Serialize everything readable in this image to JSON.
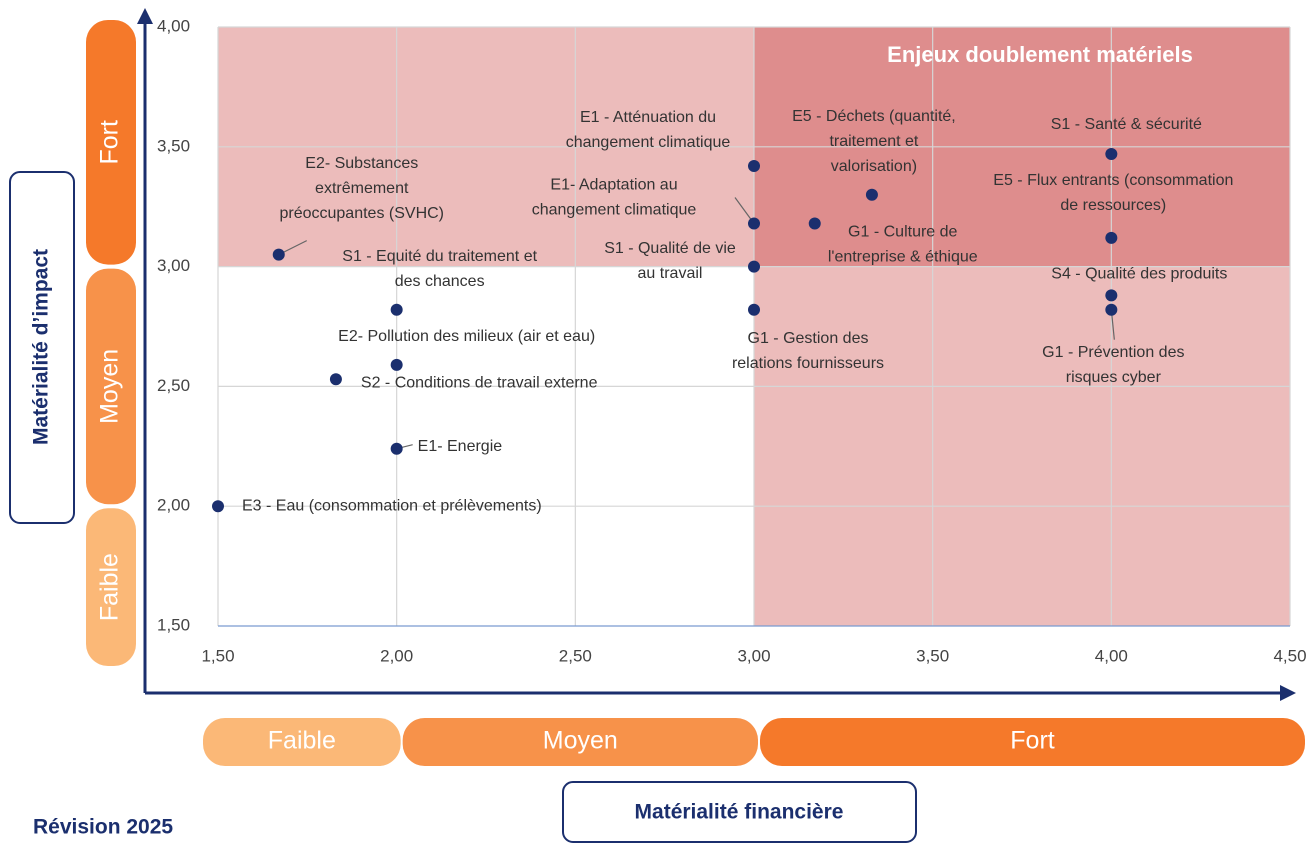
{
  "chart_data": {
    "type": "scatter",
    "highlight_label": "Enjeux doublement matériels",
    "thresholds": {
      "x": 3,
      "y": 3
    },
    "x": [
      1.67,
      2.0,
      2.0,
      1.83,
      2.0,
      1.5,
      3.0,
      3.0,
      3.0,
      3.0,
      3.17,
      3.33,
      4.0,
      4.0,
      4.0,
      4.0
    ],
    "y": [
      3.05,
      2.82,
      2.59,
      2.53,
      2.24,
      2.0,
      3.42,
      3.18,
      3.0,
      2.82,
      3.18,
      3.3,
      3.47,
      3.12,
      2.88,
      2.82
    ],
    "labels": [
      [
        "E2- Substances",
        "extrêmement",
        "préoccupantes (SVHC)"
      ],
      [
        "S1 - Equité du traitement et",
        "des chances"
      ],
      [
        "E2- Pollution des milieux (air et eau)"
      ],
      [
        "S2 - Conditions de travail externe"
      ],
      [
        "E1- Energie"
      ],
      [
        "E3 - Eau (consommation et prélèvements)"
      ],
      [
        "E1 - Atténuation du",
        "changement climatique"
      ],
      [
        "E1- Adaptation au",
        "changement climatique"
      ],
      [
        "S1 - Qualité de vie",
        "au travail"
      ],
      [
        "G1 - Gestion des",
        "relations fournisseurs"
      ],
      [
        "G1 - Culture de",
        "l'entreprise & éthique"
      ],
      [
        "E5 - Déchets (quantité,",
        "traitement et",
        "valorisation)"
      ],
      [
        "S1 - Santé & sécurité"
      ],
      [
        "E5 - Flux entrants (consommation",
        "de ressources)"
      ],
      [
        "S4 - Qualité des produits"
      ],
      [
        "G1 - Prévention des",
        "risques cyber"
      ]
    ],
    "color": "#1b2f6e",
    "xlim": [
      1.5,
      4.5
    ],
    "ylim": [
      1.5,
      4.0
    ],
    "xticks": [
      {
        "value": 1.5,
        "label": "1,50"
      },
      {
        "value": 2.0,
        "label": "2,00"
      },
      {
        "value": 2.5,
        "label": "2,50"
      },
      {
        "value": 3.0,
        "label": "3,00"
      },
      {
        "value": 3.5,
        "label": "3,50"
      },
      {
        "value": 4.0,
        "label": "4,00"
      },
      {
        "value": 4.5,
        "label": "4,50"
      }
    ],
    "yticks": [
      {
        "value": 1.5,
        "label": "1,50"
      },
      {
        "value": 2.0,
        "label": "2,00"
      },
      {
        "value": 2.5,
        "label": "2,50"
      },
      {
        "value": 3.0,
        "label": "3,00"
      },
      {
        "value": 3.5,
        "label": "3,50"
      },
      {
        "value": 4.0,
        "label": "4,00"
      }
    ],
    "grid": true,
    "xlabel": "Matérialité financière",
    "ylabel": "Matérialité d’impact",
    "xbands": [
      {
        "label": "Faible",
        "range": [
          1.5,
          2.0
        ],
        "color": "#fbb877"
      },
      {
        "label": "Moyen",
        "range": [
          2.0,
          3.0
        ],
        "color": "#f7924a"
      },
      {
        "label": "Fort",
        "range": [
          3.0,
          4.5
        ],
        "color": "#f5792a"
      }
    ],
    "ybands": [
      {
        "label": "Faible",
        "range": [
          1.5,
          2.0
        ],
        "color": "#fbb877"
      },
      {
        "label": "Moyen",
        "range": [
          2.0,
          3.0
        ],
        "color": "#f7924a"
      },
      {
        "label": "Fort",
        "range": [
          3.0,
          4.0
        ],
        "color": "#f5792a"
      }
    ],
    "note": "Révision 2025"
  }
}
